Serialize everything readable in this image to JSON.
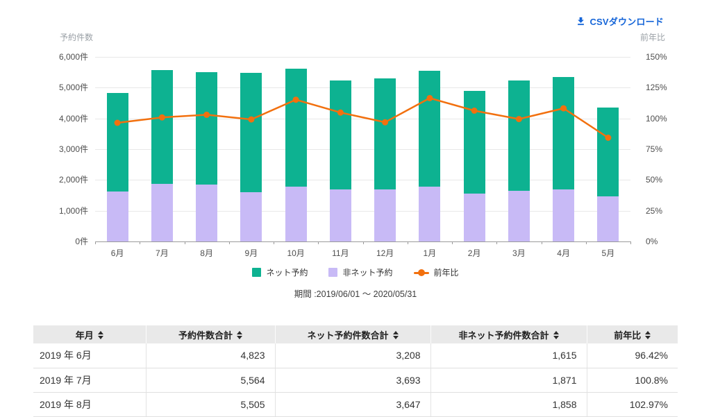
{
  "csv_link": {
    "label": "CSVダウンロード",
    "color": "#1565d8"
  },
  "colors": {
    "net_bar": "#0db291",
    "non_net_bar": "#c8baf6",
    "ratio_line": "#f2700e",
    "gridline": "#e8e8e8",
    "axis": "#9b9b9b"
  },
  "chart_data": {
    "type": "bar",
    "subtype": "stacked-bars-with-line",
    "categories": [
      "6月",
      "7月",
      "8月",
      "9月",
      "10月",
      "11月",
      "12月",
      "1月",
      "2月",
      "3月",
      "4月",
      "5月"
    ],
    "series": [
      {
        "name": "ネット予約",
        "type": "bar",
        "color": "#0db291",
        "values": [
          3208,
          3693,
          3647,
          3880,
          3830,
          3540,
          3590,
          3760,
          3340,
          3590,
          3660,
          2900
        ]
      },
      {
        "name": "非ネット予約",
        "type": "bar",
        "color": "#c8baf6",
        "values": [
          1615,
          1871,
          1858,
          1600,
          1780,
          1690,
          1700,
          1790,
          1550,
          1650,
          1690,
          1460
        ]
      },
      {
        "name": "前年比",
        "type": "line",
        "color": "#f2700e",
        "values": [
          96.42,
          100.8,
          102.97,
          99.2,
          115.2,
          104.8,
          96.9,
          116.5,
          106.3,
          99.5,
          108.2,
          84.3
        ]
      }
    ],
    "totals": [
      4823,
      5564,
      5505,
      5480,
      5610,
      5230,
      5290,
      5550,
      4890,
      5240,
      5350,
      4360
    ],
    "left_axis": {
      "title": "予約件数",
      "unit": "件",
      "min": 0,
      "max": 6000,
      "ticks": [
        "6,000件",
        "5,000件",
        "4,000件",
        "3,000件",
        "2,000件",
        "1,000件",
        "0件"
      ]
    },
    "right_axis": {
      "title": "前年比",
      "unit": "%",
      "min": 0,
      "max": 150,
      "ticks": [
        "150%",
        "125%",
        "100%",
        "75%",
        "50%",
        "25%",
        "0%"
      ]
    },
    "legend_position": "bottom",
    "grid": true,
    "period_label": "期間 :2019/06/01 〜 2020/05/31"
  },
  "table": {
    "columns": [
      {
        "label": "年月",
        "align": "left",
        "sortable": true
      },
      {
        "label": "予約件数合計",
        "align": "right",
        "sortable": true
      },
      {
        "label": "ネット予約件数合計",
        "align": "right",
        "sortable": true
      },
      {
        "label": "非ネット予約件数合計",
        "align": "right",
        "sortable": true
      },
      {
        "label": "前年比",
        "align": "right",
        "sortable": true
      }
    ],
    "rows": [
      [
        "2019 年 6月",
        "4,823",
        "3,208",
        "1,615",
        "96.42%"
      ],
      [
        "2019 年 7月",
        "5,564",
        "3,693",
        "1,871",
        "100.8%"
      ],
      [
        "2019 年 8月",
        "5,505",
        "3,647",
        "1,858",
        "102.97%"
      ]
    ]
  }
}
